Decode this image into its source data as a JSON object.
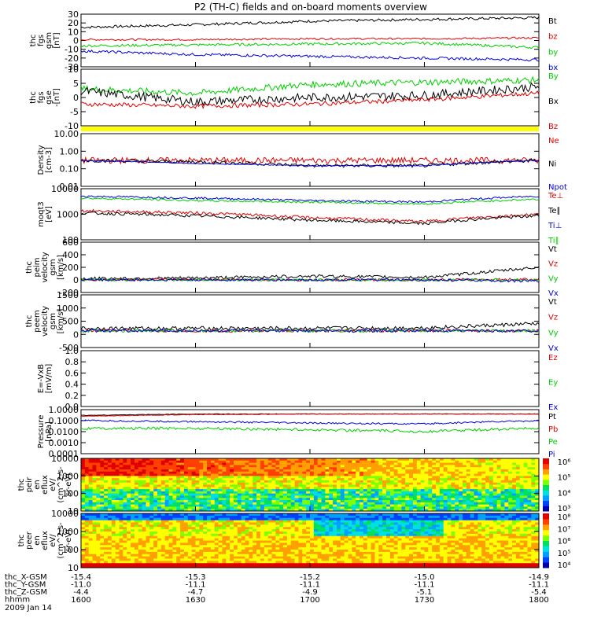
{
  "title": "P2 (TH-C) fields and on-board moments overview",
  "colors": {
    "black": "#000000",
    "red": "#e00000",
    "green": "#00d000",
    "blue": "#0000e0",
    "yellow": "#ffff00"
  },
  "time_axis": {
    "ticks": [
      "1600",
      "1630",
      "1700",
      "1730",
      "1800"
    ],
    "rows": [
      {
        "label": "thc_X-GSM",
        "values": [
          "-15.4",
          "-15.3",
          "-15.2",
          "-15.0",
          "-14.9"
        ]
      },
      {
        "label": "thc_Y-GSM",
        "values": [
          "-11.0",
          "-11.1",
          "-11.1",
          "-11.1",
          "-11.1"
        ]
      },
      {
        "label": "thc_Z-GSM",
        "values": [
          "-4.4",
          "-4.7",
          "-4.9",
          "-5.1",
          "-5.4"
        ]
      },
      {
        "label": "hhmm",
        "values": []
      }
    ],
    "date": "2009 Jan 14"
  },
  "chart_data": [
    {
      "type": "line",
      "ylabel": [
        "thc",
        "fgs",
        "gsm",
        "[nT]"
      ],
      "yticks": [
        "30",
        "20",
        "10",
        "0",
        "-10",
        "-20",
        "-30"
      ],
      "ylim": [
        -30,
        30
      ],
      "series": [
        {
          "name": "Bt",
          "color": "black",
          "base": [
            15,
            18,
            22,
            24,
            26
          ],
          "noise": 1.5
        },
        {
          "name": "bz",
          "color": "red",
          "base": [
            1,
            1,
            2,
            2,
            3
          ],
          "noise": 1
        },
        {
          "name": "by",
          "color": "green",
          "base": [
            -6,
            -5,
            -4,
            -3,
            -8
          ],
          "noise": 1.5
        },
        {
          "name": "bx",
          "color": "blue",
          "base": [
            -12,
            -16,
            -18,
            -20,
            -22
          ],
          "noise": 1.5
        }
      ]
    },
    {
      "type": "line",
      "ylabel": [
        "thc",
        "fgs",
        "gse",
        "-[nT]"
      ],
      "yticks": [
        "10",
        "5",
        "0",
        "-5",
        "-10"
      ],
      "ylim": [
        -13,
        13
      ],
      "series": [
        {
          "name": "By",
          "color": "green",
          "base": [
            4,
            2,
            6,
            7,
            8
          ],
          "noise": 1.5
        },
        {
          "name": "Bx",
          "color": "black",
          "base": [
            3,
            -2,
            0,
            1,
            5
          ],
          "noise": 2
        },
        {
          "name": "Bz",
          "color": "red",
          "base": [
            -3,
            -4,
            -3,
            -1,
            2
          ],
          "noise": 1
        }
      ]
    },
    {
      "type": "line",
      "ylabel": [
        "Density",
        "[cm-3]"
      ],
      "yticks": [
        "10.00",
        "1.00",
        "0.10",
        "0.01"
      ],
      "ylim": [
        0.01,
        10
      ],
      "log": true,
      "series": [
        {
          "name": "Ne",
          "color": "red",
          "base": [
            0.3,
            0.3,
            0.3,
            0.3,
            0.3
          ],
          "noise": 0.35
        },
        {
          "name": "Ni",
          "color": "black",
          "base": [
            0.3,
            0.25,
            0.15,
            0.15,
            0.3
          ],
          "noise": 0.2
        },
        {
          "name": "Npot",
          "color": "blue",
          "base": [
            0.3,
            0.2,
            0.15,
            0.15,
            0.3
          ],
          "noise": 0.05
        }
      ]
    },
    {
      "type": "line",
      "ylabel": [
        "moqt3",
        "[eV]"
      ],
      "yticks": [
        "10000",
        "1000",
        "100"
      ],
      "ylim": [
        30,
        12000
      ],
      "log": true,
      "series": [
        {
          "name": "Te⊥",
          "color": "red",
          "base": [
            900,
            700,
            400,
            250,
            600
          ],
          "noise": 0.15
        },
        {
          "name": "Te∥",
          "color": "black",
          "base": [
            700,
            500,
            300,
            200,
            500
          ],
          "noise": 0.15
        },
        {
          "name": "Ti⊥",
          "color": "blue",
          "base": [
            5000,
            4000,
            3000,
            2500,
            5000
          ],
          "noise": 0.1
        },
        {
          "name": "Ti∥",
          "color": "green",
          "base": [
            4000,
            3000,
            2500,
            2000,
            3500
          ],
          "noise": 0.1
        }
      ]
    },
    {
      "type": "line",
      "ylabel": [
        "thc",
        "peim",
        "velocity",
        "gsm",
        "[km/s]"
      ],
      "yticks": [
        "600",
        "400",
        "200",
        "0",
        "-200"
      ],
      "ylim": [
        -200,
        600
      ],
      "series": [
        {
          "name": "Vt",
          "color": "black",
          "base": [
            20,
            30,
            60,
            40,
            200
          ],
          "noise": 25
        },
        {
          "name": "Vz",
          "color": "red",
          "base": [
            0,
            10,
            0,
            0,
            10
          ],
          "noise": 20
        },
        {
          "name": "Vy",
          "color": "green",
          "base": [
            0,
            0,
            0,
            0,
            0
          ],
          "noise": 20
        },
        {
          "name": "Vx",
          "color": "blue",
          "base": [
            0,
            0,
            0,
            0,
            -20
          ],
          "noise": 20
        }
      ]
    },
    {
      "type": "line",
      "ylabel": [
        "thc",
        "peem",
        "velocity",
        "gsm",
        "[km/s]"
      ],
      "yticks": [
        "1500",
        "1000",
        "500",
        "0",
        "-500"
      ],
      "ylim": [
        -700,
        1500
      ],
      "series": [
        {
          "name": "Vt",
          "color": "black",
          "base": [
            100,
            100,
            100,
            120,
            300
          ],
          "noise": 80
        },
        {
          "name": "Vz",
          "color": "red",
          "base": [
            0,
            0,
            0,
            0,
            0
          ],
          "noise": 60
        },
        {
          "name": "Vy",
          "color": "green",
          "base": [
            0,
            0,
            0,
            0,
            0
          ],
          "noise": 60
        },
        {
          "name": "Vx",
          "color": "blue",
          "base": [
            0,
            0,
            0,
            0,
            0
          ],
          "noise": 60
        }
      ]
    },
    {
      "type": "line",
      "ylabel": [
        "E=-VxB",
        "[mV/m]"
      ],
      "yticks": [
        "1.0",
        "0.8",
        "0.6",
        "0.4",
        "0.2",
        "0.0"
      ],
      "ylim": [
        0,
        1
      ],
      "series": [
        {
          "name": "Ez",
          "color": "red",
          "base": [],
          "noise": 0
        },
        {
          "name": "Ey",
          "color": "green",
          "base": [],
          "noise": 0
        },
        {
          "name": "Ex",
          "color": "blue",
          "base": [],
          "noise": 0
        }
      ]
    },
    {
      "type": "line",
      "ylabel": [
        "Pressure",
        "[nPa]"
      ],
      "yticks": [
        "1.0000",
        "0.1000",
        "0.0100",
        "0.0010",
        "0.0001"
      ],
      "ylim": [
        0.0001,
        1
      ],
      "log": true,
      "series": [
        {
          "name": "Pt",
          "color": "black",
          "base": [
            0.3,
            0.4,
            0.4,
            0.4,
            0.4
          ],
          "noise": 0.05
        },
        {
          "name": "Pb",
          "color": "red",
          "base": [
            0.25,
            0.35,
            0.4,
            0.4,
            0.4
          ],
          "noise": 0.05
        },
        {
          "name": "Pe",
          "color": "green",
          "base": [
            0.02,
            0.02,
            0.015,
            0.01,
            0.02
          ],
          "noise": 0.25
        },
        {
          "name": "Pi",
          "color": "blue",
          "base": [
            0.1,
            0.08,
            0.06,
            0.05,
            0.1
          ],
          "noise": 0.15
        }
      ]
    },
    {
      "type": "heatmap",
      "ylabel": [
        "thc",
        "peir",
        "en",
        "eflux",
        "eV/",
        "(cm^2-s-",
        "sr-eV)"
      ],
      "yticks": [
        "10000",
        "1000",
        "100",
        "10"
      ],
      "colorbar": [
        "10⁶",
        "10⁵",
        "10⁴",
        "10³"
      ]
    },
    {
      "type": "heatmap",
      "ylabel": [
        "thc",
        "peer",
        "en",
        "eflux",
        "eV/",
        "(cm^2-s-",
        "sr-eV)"
      ],
      "yticks": [
        "10000",
        "1000",
        "100",
        "10"
      ],
      "colorbar": [
        "10⁸",
        "10⁷",
        "10⁶",
        "10⁵",
        "10⁴"
      ]
    }
  ]
}
